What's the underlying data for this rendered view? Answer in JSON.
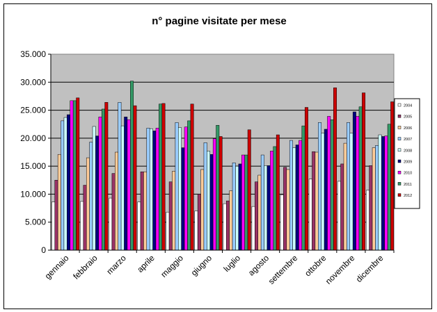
{
  "chart_data": {
    "type": "bar",
    "title": "n° pagine visitate per mese",
    "xlabel": "",
    "ylabel": "",
    "ylim": [
      0,
      35000
    ],
    "yticks": [
      "0",
      "5.000",
      "10.000",
      "15.000",
      "20.000",
      "25.000",
      "30.000",
      "35.000"
    ],
    "grid": true,
    "legend": "right",
    "categories": [
      "gennaio",
      "febbraio",
      "marzo",
      "aprile",
      "maggio",
      "giugno",
      "luglio",
      "agosto",
      "settembre",
      "ottobre",
      "novembre",
      "dicembre"
    ],
    "series": [
      {
        "name": "2004",
        "color": "#ffffff",
        "values": [
          8600,
          8700,
          9300,
          8600,
          6800,
          7000,
          8300,
          7800,
          9900,
          12700,
          12300,
          10700
        ]
      },
      {
        "name": "2005",
        "color": "#993366",
        "values": [
          12500,
          11600,
          13700,
          14000,
          12200,
          10000,
          8800,
          12200,
          14800,
          17600,
          15400,
          15100
        ]
      },
      {
        "name": "2006",
        "color": "#ffcc99",
        "values": [
          17100,
          16500,
          17500,
          14000,
          14100,
          14400,
          10600,
          13400,
          14400,
          17500,
          19100,
          18300
        ]
      },
      {
        "name": "2007",
        "color": "#99ccff",
        "values": [
          23100,
          19300,
          26400,
          21800,
          22800,
          19200,
          15600,
          17000,
          19600,
          22800,
          22800,
          18700
        ]
      },
      {
        "name": "2008",
        "color": "#ccffff",
        "values": [
          23700,
          22100,
          22200,
          21700,
          21900,
          17700,
          15000,
          15100,
          18300,
          20900,
          20900,
          20600
        ]
      },
      {
        "name": "2009",
        "color": "#000080",
        "values": [
          24200,
          20400,
          23800,
          21300,
          18300,
          17100,
          15400,
          15100,
          18800,
          21600,
          24700,
          20300
        ]
      },
      {
        "name": "2010",
        "color": "#ff00ff",
        "values": [
          26700,
          23800,
          23300,
          21800,
          22000,
          19900,
          17000,
          17700,
          19600,
          23900,
          23900,
          20400
        ]
      },
      {
        "name": "2011",
        "color": "#339966",
        "values": [
          26700,
          25200,
          30200,
          26100,
          23100,
          22300,
          17000,
          18500,
          22200,
          23300,
          25600,
          22500
        ]
      },
      {
        "name": "2012",
        "color": "#cc0000",
        "values": [
          27200,
          26400,
          25800,
          26200,
          26100,
          20300,
          21500,
          20600,
          25500,
          29000,
          28100,
          26500
        ]
      }
    ]
  }
}
